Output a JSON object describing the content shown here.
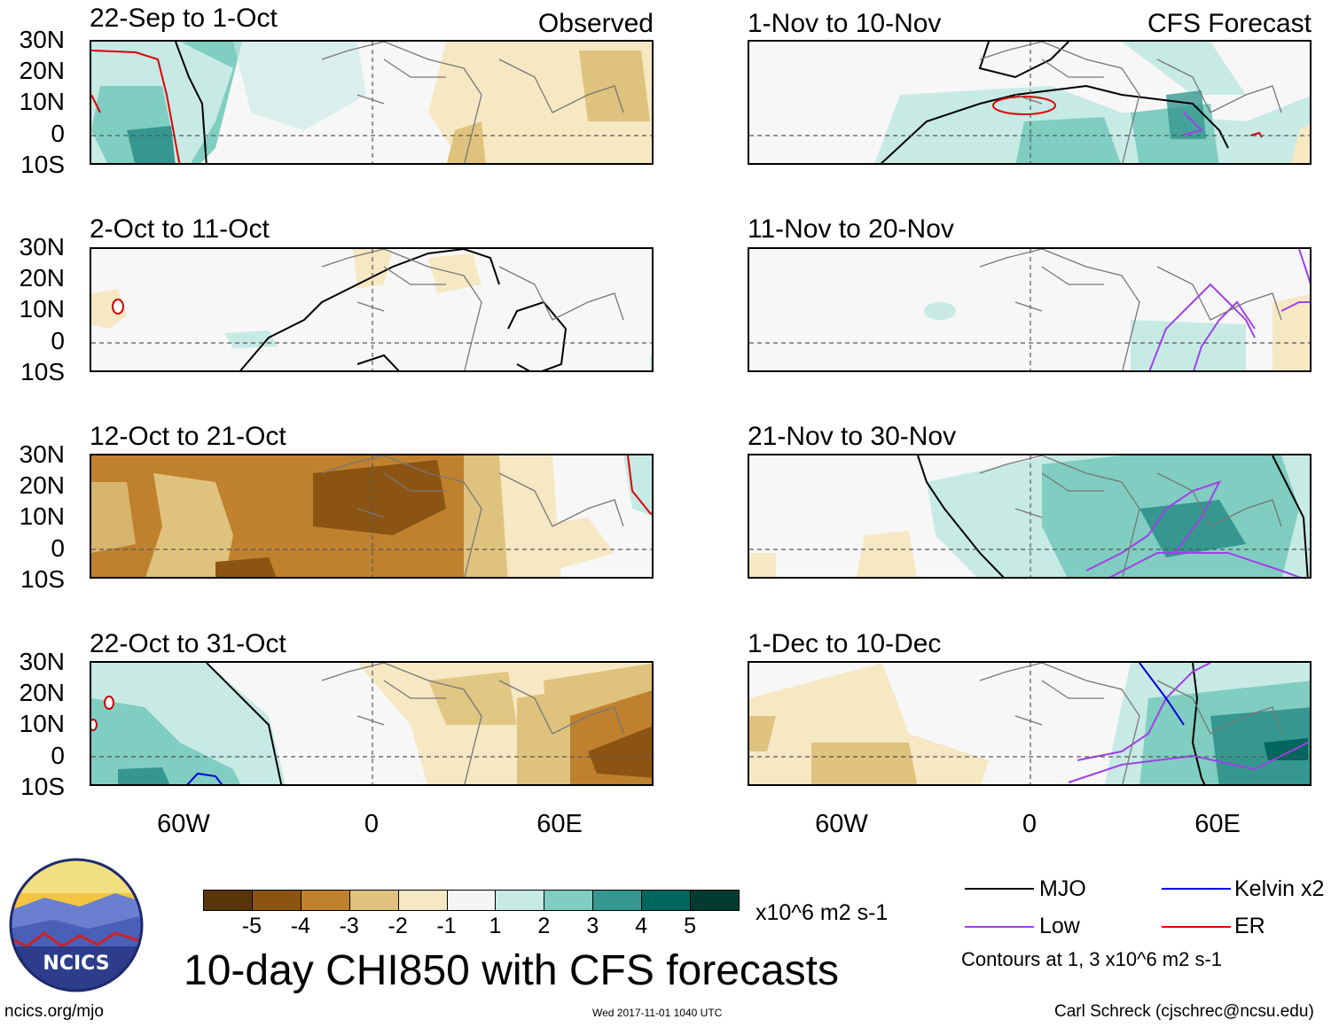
{
  "chart_data": {
    "type": "heatmap",
    "title": "10-day CHI850 with CFS forecasts",
    "variable": "CHI850",
    "units": "x10^6 m2 s-1",
    "lat_labels": [
      "30N",
      "20N",
      "10N",
      "0",
      "10S"
    ],
    "lon_labels": [
      "60W",
      "0",
      "60E"
    ],
    "lat_range": [
      -10,
      30
    ],
    "lon_range": [
      -90,
      90
    ],
    "colorbar": {
      "levels": [
        "-5",
        "-4",
        "-3",
        "-2",
        "-1",
        "1",
        "2",
        "3",
        "4",
        "5"
      ],
      "colors": [
        "#5a3509",
        "#8c5413",
        "#bf812d",
        "#dfc27d",
        "#f6e8c3",
        "#f5f5f5",
        "#c7eae5",
        "#80cdc1",
        "#35978f",
        "#01665e",
        "#003c30"
      ]
    },
    "panels": [
      {
        "title": "22-Sep to 1-Oct",
        "status": "Observed"
      },
      {
        "title": "2-Oct to 11-Oct",
        "status": ""
      },
      {
        "title": "12-Oct to 21-Oct",
        "status": ""
      },
      {
        "title": "22-Oct to 31-Oct",
        "status": ""
      },
      {
        "title": "1-Nov to 10-Nov",
        "status": "CFS Forecast"
      },
      {
        "title": "11-Nov to 20-Nov",
        "status": ""
      },
      {
        "title": "21-Nov to 30-Nov",
        "status": ""
      },
      {
        "title": "1-Dec to 10-Dec",
        "status": ""
      }
    ],
    "legend": [
      {
        "label": "MJO",
        "color": "#000000"
      },
      {
        "label": "Kelvin x2",
        "color": "#0000dd"
      },
      {
        "label": "Low",
        "color": "#a040e8"
      },
      {
        "label": "ER",
        "color": "#dd0000"
      }
    ],
    "contour_note": "Contours at 1, 3 x10^6 m2 s-1"
  },
  "footer": {
    "left": "ncics.org/mjo",
    "center": "Wed 2017-11-01 1040 UTC",
    "right": "Carl Schreck (cjschrec@ncsu.edu)"
  },
  "logo": {
    "text": "NCICS"
  }
}
